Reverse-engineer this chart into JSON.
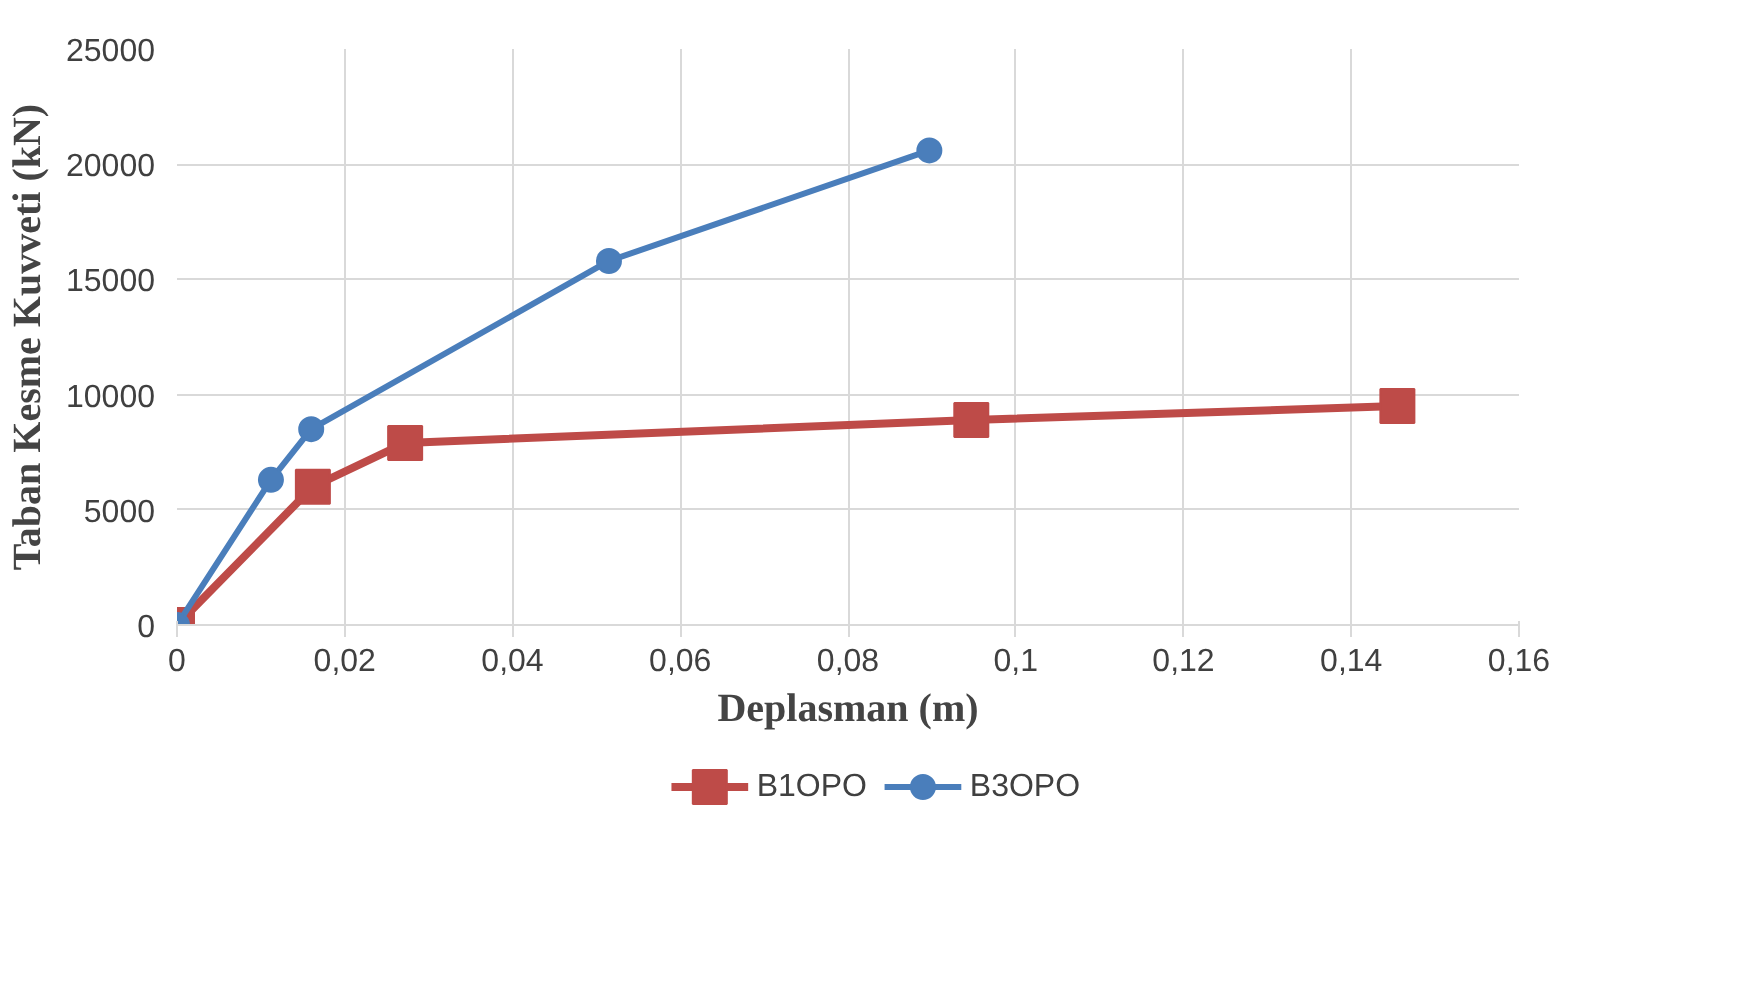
{
  "chart_data": {
    "type": "line",
    "xlabel": "Deplasman (m)",
    "ylabel": "Taban Kesme Kuvveti (kN)",
    "xlim": [
      0,
      0.16
    ],
    "xticks": [
      0,
      {
        "value": 0.02,
        "label": "0,02"
      },
      {
        "value": 0.04,
        "label": "0,04"
      },
      {
        "value": 0.06,
        "label": "0,06"
      },
      {
        "value": 0.08,
        "label": "0,08"
      },
      {
        "value": 0.1,
        "label": "0,1"
      },
      {
        "value": 0.12,
        "label": "0,12"
      },
      {
        "value": 0.14,
        "label": "0,14"
      },
      {
        "value": 0.16,
        "label": "0,16"
      }
    ],
    "ylim": [
      0,
      25000
    ],
    "yticks": [
      0,
      5000,
      10000,
      15000,
      20000,
      25000
    ],
    "grid": true,
    "legend": "bottom",
    "series": [
      {
        "name": "B1OPO",
        "color": "#be4b48",
        "marker": "square",
        "x": [
          0,
          0.0162,
          0.0272,
          0.0947,
          0.1455
        ],
        "values": [
          0,
          6000,
          7900,
          8900,
          9500
        ]
      },
      {
        "name": "B3OPO",
        "color": "#4a7ebb",
        "marker": "circle",
        "x": [
          0,
          0.0112,
          0.016,
          0.0515,
          0.0897
        ],
        "values": [
          0,
          6300,
          8500,
          15800,
          20600
        ]
      }
    ]
  }
}
